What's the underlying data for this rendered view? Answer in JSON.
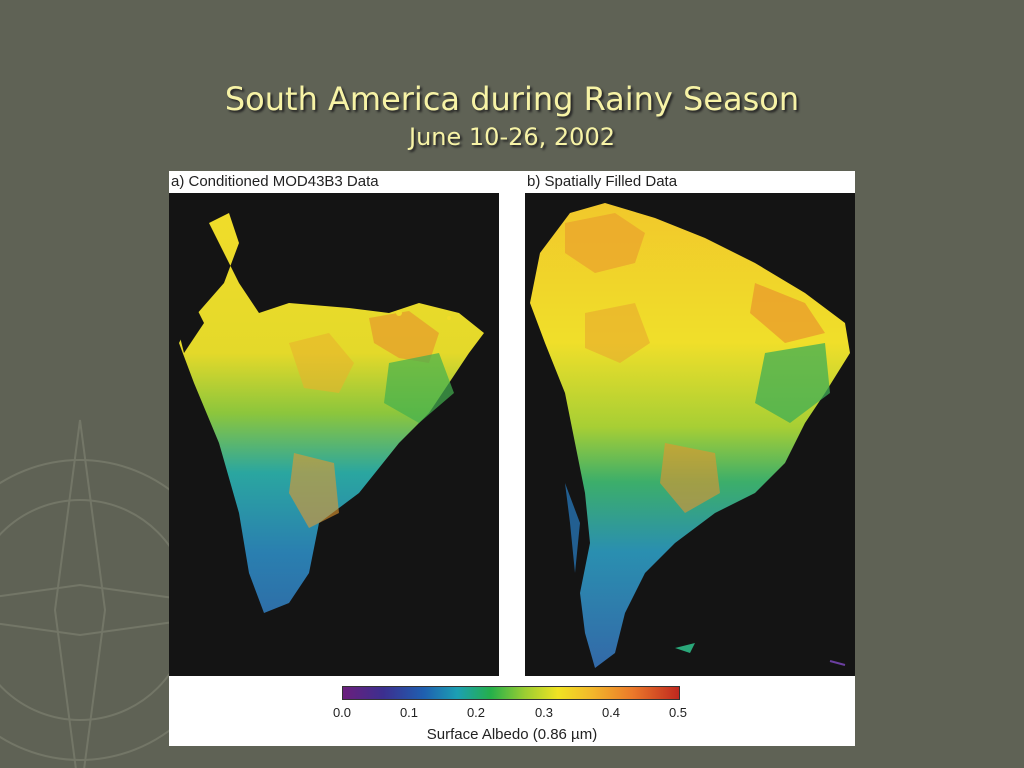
{
  "slide": {
    "title": "South America during Rainy Season",
    "subtitle": "June 10-26, 2002"
  },
  "figure": {
    "panel_a_label": "a) Conditioned MOD43B3 Data",
    "panel_b_label": "b) Spatially Filled Data",
    "colorbar": {
      "ticks": [
        "0.0",
        "0.1",
        "0.2",
        "0.3",
        "0.4",
        "0.5"
      ],
      "label": "Surface Albedo (0.86 µm)",
      "colors": [
        "#6b1f7d",
        "#3c2f8f",
        "#1f5fb0",
        "#1c9fb3",
        "#25b04a",
        "#9acd32",
        "#f1e323",
        "#f2b82b",
        "#ec7a2a",
        "#c0281f"
      ]
    }
  }
}
